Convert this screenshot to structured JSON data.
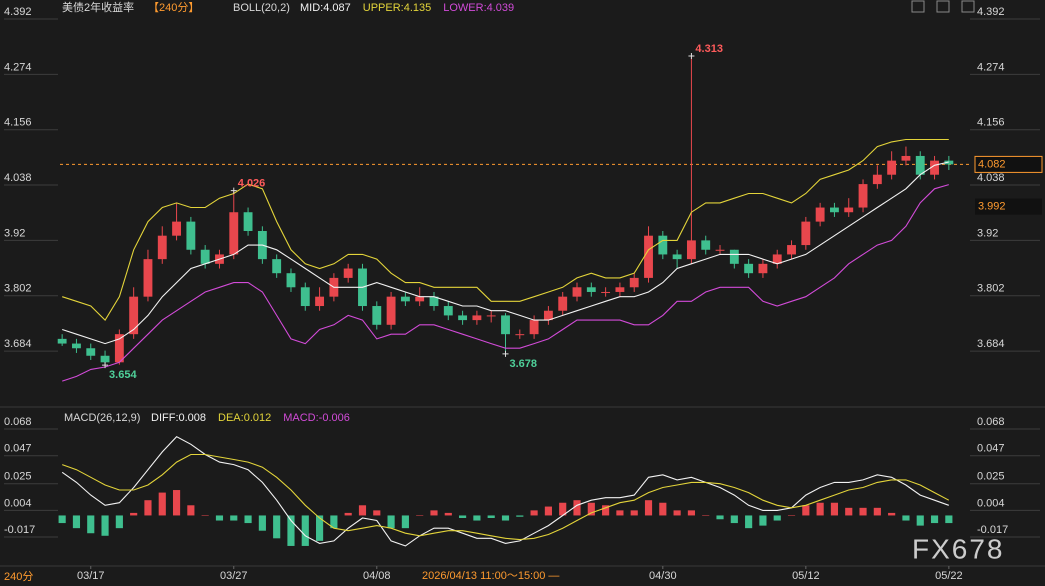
{
  "crosshair_label": "2026/04/13 11:00～15:00 —",
  "period_footer": "240分",
  "watermark": "FX678",
  "chart_data": [
    {
      "type": "candlestick",
      "title": "美债2年收益率",
      "period": "【240分】",
      "indicator": "BOLL(20,2)",
      "open": [
        3.71,
        3.7,
        3.69,
        3.674,
        3.66,
        3.72,
        3.8,
        3.88,
        3.93,
        3.96,
        3.9,
        3.87,
        3.89,
        3.98,
        3.94,
        3.88,
        3.85,
        3.82,
        3.78,
        3.8,
        3.84,
        3.86,
        3.78,
        3.74,
        3.8,
        3.79,
        3.8,
        3.78,
        3.76,
        3.75,
        3.76,
        3.76,
        3.72,
        3.72,
        3.75,
        3.77,
        3.8,
        3.82,
        3.81,
        3.81,
        3.82,
        3.84,
        3.93,
        3.89,
        3.88,
        3.92,
        3.9,
        3.9,
        3.87,
        3.85,
        3.87,
        3.89,
        3.91,
        3.96,
        3.99,
        3.98,
        3.99,
        4.04,
        4.06,
        4.09,
        4.1,
        4.06,
        4.09
      ],
      "high": [
        3.72,
        3.71,
        3.7,
        3.685,
        3.73,
        3.82,
        3.9,
        3.95,
        4.0,
        3.97,
        3.91,
        3.9,
        4.026,
        3.99,
        3.95,
        3.89,
        3.86,
        3.83,
        3.82,
        3.85,
        3.87,
        3.87,
        3.79,
        3.81,
        3.81,
        3.82,
        3.81,
        3.79,
        3.77,
        3.77,
        3.77,
        3.765,
        3.73,
        3.76,
        3.78,
        3.81,
        3.83,
        3.83,
        3.82,
        3.83,
        3.85,
        3.95,
        3.94,
        3.9,
        4.313,
        3.93,
        3.91,
        3.9,
        3.88,
        3.88,
        3.9,
        3.92,
        3.97,
        4.0,
        4.0,
        4.01,
        4.05,
        4.08,
        4.11,
        4.12,
        4.11,
        4.1,
        4.1
      ],
      "low": [
        3.695,
        3.68,
        3.665,
        3.654,
        3.655,
        3.71,
        3.79,
        3.87,
        3.92,
        3.89,
        3.86,
        3.86,
        3.88,
        3.93,
        3.87,
        3.84,
        3.81,
        3.77,
        3.77,
        3.79,
        3.83,
        3.77,
        3.73,
        3.73,
        3.78,
        3.78,
        3.77,
        3.75,
        3.74,
        3.74,
        3.745,
        3.678,
        3.71,
        3.71,
        3.74,
        3.76,
        3.79,
        3.8,
        3.8,
        3.8,
        3.81,
        3.83,
        3.88,
        3.86,
        3.87,
        3.89,
        3.89,
        3.86,
        3.84,
        3.84,
        3.86,
        3.88,
        3.9,
        3.95,
        3.97,
        3.97,
        3.98,
        4.03,
        4.05,
        4.08,
        4.05,
        4.05,
        4.07
      ],
      "close": [
        3.7,
        3.69,
        3.674,
        3.66,
        3.72,
        3.8,
        3.88,
        3.93,
        3.96,
        3.9,
        3.87,
        3.89,
        3.98,
        3.94,
        3.88,
        3.85,
        3.82,
        3.78,
        3.8,
        3.84,
        3.86,
        3.78,
        3.74,
        3.8,
        3.79,
        3.8,
        3.78,
        3.76,
        3.75,
        3.76,
        3.76,
        3.72,
        3.72,
        3.75,
        3.77,
        3.8,
        3.82,
        3.81,
        3.81,
        3.82,
        3.84,
        3.93,
        3.89,
        3.88,
        3.92,
        3.9,
        3.9,
        3.87,
        3.85,
        3.87,
        3.89,
        3.91,
        3.96,
        3.99,
        3.98,
        3.99,
        4.04,
        4.06,
        4.09,
        4.1,
        4.06,
        4.09,
        4.082
      ],
      "up_color": "#e8474d",
      "down_color": "#3fbf8f",
      "series": [
        {
          "name": "MID:4.087",
          "color": "#f2f2f2",
          "values": [
            3.73,
            3.72,
            3.71,
            3.7,
            3.71,
            3.73,
            3.76,
            3.8,
            3.83,
            3.86,
            3.87,
            3.88,
            3.89,
            3.91,
            3.91,
            3.9,
            3.88,
            3.86,
            3.84,
            3.82,
            3.82,
            3.82,
            3.83,
            3.82,
            3.81,
            3.8,
            3.8,
            3.79,
            3.78,
            3.78,
            3.77,
            3.77,
            3.76,
            3.75,
            3.75,
            3.76,
            3.77,
            3.78,
            3.79,
            3.8,
            3.8,
            3.81,
            3.83,
            3.86,
            3.87,
            3.88,
            3.89,
            3.89,
            3.89,
            3.88,
            3.87,
            3.88,
            3.89,
            3.91,
            3.93,
            3.95,
            3.97,
            3.99,
            4.01,
            4.03,
            4.06,
            4.08,
            4.087
          ]
        },
        {
          "name": "UPPER:4.135",
          "color": "#e3d43a",
          "values": [
            3.8,
            3.79,
            3.78,
            3.75,
            3.8,
            3.9,
            3.96,
            3.99,
            4.0,
            3.99,
            3.99,
            4.01,
            4.02,
            4.04,
            4.03,
            3.96,
            3.9,
            3.87,
            3.86,
            3.87,
            3.89,
            3.89,
            3.88,
            3.85,
            3.83,
            3.83,
            3.82,
            3.82,
            3.82,
            3.82,
            3.79,
            3.79,
            3.79,
            3.8,
            3.81,
            3.82,
            3.84,
            3.85,
            3.84,
            3.84,
            3.85,
            3.9,
            3.92,
            3.92,
            3.98,
            4.0,
            4.0,
            4.01,
            4.02,
            4.02,
            4.01,
            4.0,
            4.02,
            4.05,
            4.06,
            4.07,
            4.09,
            4.12,
            4.13,
            4.135,
            4.135,
            4.135,
            4.135
          ]
        },
        {
          "name": "LOWER:4.039",
          "color": "#d24bd8",
          "values": [
            3.62,
            3.63,
            3.645,
            3.65,
            3.66,
            3.69,
            3.72,
            3.75,
            3.77,
            3.79,
            3.81,
            3.82,
            3.83,
            3.83,
            3.81,
            3.76,
            3.71,
            3.7,
            3.73,
            3.74,
            3.76,
            3.75,
            3.71,
            3.72,
            3.72,
            3.74,
            3.74,
            3.73,
            3.72,
            3.71,
            3.7,
            3.69,
            3.69,
            3.7,
            3.71,
            3.73,
            3.75,
            3.75,
            3.75,
            3.75,
            3.74,
            3.74,
            3.76,
            3.79,
            3.79,
            3.81,
            3.82,
            3.82,
            3.82,
            3.79,
            3.78,
            3.79,
            3.8,
            3.82,
            3.84,
            3.87,
            3.89,
            3.91,
            3.92,
            3.95,
            4.0,
            4.03,
            4.039
          ]
        }
      ],
      "annotations": [
        {
          "index": 12,
          "value": 4.026,
          "color": "#ff5b5b",
          "anchor": "high"
        },
        {
          "index": 44,
          "value": 4.313,
          "color": "#ff5b5b",
          "anchor": "high"
        },
        {
          "index": 3,
          "value": 3.654,
          "color": "#4fd19a",
          "anchor": "low"
        },
        {
          "index": 31,
          "value": 3.678,
          "color": "#4fd19a",
          "anchor": "low"
        }
      ],
      "price_tags": [
        {
          "value": 4.082,
          "color": "#ff9b2f",
          "dashed": true
        },
        {
          "value": 3.992,
          "color": "#ff9b2f",
          "dashed": false
        }
      ],
      "xlim": [
        -0.5,
        62.5
      ],
      "xticks": [
        {
          "value": 2,
          "label": "03/17"
        },
        {
          "value": 12,
          "label": "03/27"
        },
        {
          "value": 22,
          "label": "04/08"
        },
        {
          "value": 42,
          "label": "04/30"
        },
        {
          "value": 52,
          "label": "05/12"
        },
        {
          "value": 62,
          "label": "05/22"
        }
      ],
      "ylim": [
        3.569,
        4.392
      ],
      "yticks": [
        3.684,
        3.802,
        3.92,
        4.038,
        4.156,
        4.274,
        4.392
      ]
    },
    {
      "type": "macd",
      "title": "MACD(26,12,9)",
      "series": [
        {
          "name": "DIFF:0.008",
          "color": "#f2f2f2",
          "values": [
            0.034,
            0.026,
            0.016,
            0.008,
            0.01,
            0.022,
            0.036,
            0.05,
            0.062,
            0.056,
            0.048,
            0.042,
            0.04,
            0.036,
            0.026,
            0.012,
            -0.004,
            -0.016,
            -0.022,
            -0.02,
            -0.01,
            -0.002,
            -0.004,
            -0.02,
            -0.024,
            -0.016,
            -0.01,
            -0.01,
            -0.014,
            -0.018,
            -0.018,
            -0.022,
            -0.02,
            -0.014,
            -0.008,
            0.0,
            0.008,
            0.012,
            0.014,
            0.014,
            0.016,
            0.03,
            0.032,
            0.028,
            0.03,
            0.026,
            0.022,
            0.016,
            0.008,
            0.004,
            0.004,
            0.006,
            0.016,
            0.022,
            0.026,
            0.026,
            0.028,
            0.032,
            0.03,
            0.024,
            0.016,
            0.012,
            0.008
          ]
        },
        {
          "name": "DEA:0.012",
          "color": "#e3d43a",
          "values": [
            0.04,
            0.036,
            0.03,
            0.024,
            0.02,
            0.02,
            0.024,
            0.032,
            0.042,
            0.048,
            0.048,
            0.046,
            0.044,
            0.042,
            0.038,
            0.03,
            0.02,
            0.008,
            -0.002,
            -0.01,
            -0.012,
            -0.01,
            -0.008,
            -0.01,
            -0.014,
            -0.016,
            -0.014,
            -0.012,
            -0.012,
            -0.014,
            -0.016,
            -0.018,
            -0.019,
            -0.018,
            -0.015,
            -0.01,
            -0.004,
            0.002,
            0.006,
            0.01,
            0.012,
            0.018,
            0.022,
            0.024,
            0.026,
            0.026,
            0.025,
            0.022,
            0.018,
            0.012,
            0.008,
            0.006,
            0.008,
            0.012,
            0.016,
            0.02,
            0.022,
            0.026,
            0.028,
            0.028,
            0.024,
            0.018,
            0.012
          ]
        }
      ],
      "histogram": {
        "name": "MACD:-0.006",
        "color": "#d24bd8",
        "up_color": "#e8474d",
        "down_color": "#3fbf8f",
        "values": [
          -0.006,
          -0.01,
          -0.014,
          -0.016,
          -0.01,
          0.002,
          0.012,
          0.018,
          0.02,
          0.008,
          0.0,
          -0.004,
          -0.004,
          -0.006,
          -0.012,
          -0.018,
          -0.024,
          -0.024,
          -0.02,
          -0.01,
          0.002,
          0.008,
          0.004,
          -0.01,
          -0.01,
          0.0,
          0.004,
          0.002,
          -0.002,
          -0.004,
          -0.002,
          -0.004,
          -0.001,
          0.004,
          0.007,
          0.01,
          0.012,
          0.01,
          0.008,
          0.004,
          0.004,
          0.012,
          0.01,
          0.004,
          0.004,
          0.0,
          -0.003,
          -0.006,
          -0.01,
          -0.008,
          -0.004,
          0.0,
          0.008,
          0.01,
          0.01,
          0.006,
          0.006,
          0.006,
          0.002,
          -0.004,
          -0.008,
          -0.006,
          -0.006
        ]
      },
      "xlim": [
        -0.5,
        62.5
      ],
      "ylim": [
        -0.039,
        0.083
      ],
      "yticks": [
        -0.017,
        0.004,
        0.025,
        0.047,
        0.068
      ]
    }
  ]
}
